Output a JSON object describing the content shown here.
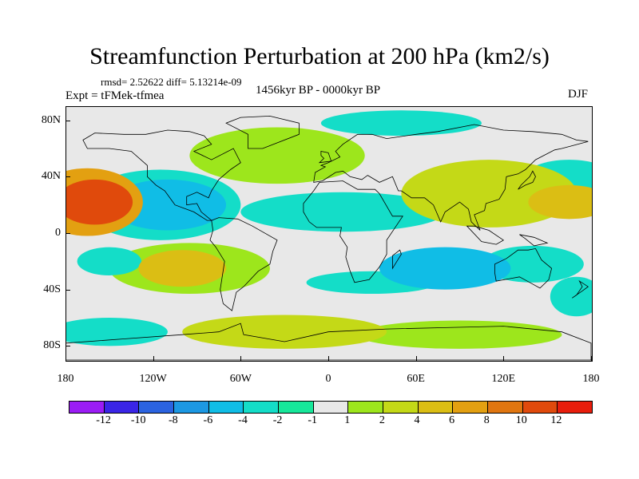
{
  "title": "Streamfunction Perturbation at 200 hPa (km2/s)",
  "stats": "rmsd= 2.52622 diff= 5.13214e-09",
  "experiment": "Expt = tFMek-tfmea",
  "period": "1456kyr BP - 0000kyr BP",
  "season": "DJF",
  "map": {
    "projection": "cylindrical-equidistant",
    "lon_range": [
      -180,
      180
    ],
    "lat_range": [
      -90,
      90
    ],
    "lat_labels": [
      "80N",
      "40N",
      "0",
      "40S",
      "80S"
    ],
    "lat_values": [
      80,
      40,
      0,
      -40,
      -80
    ],
    "lon_labels": [
      "180",
      "120W",
      "60W",
      "0",
      "60E",
      "120E",
      "180"
    ],
    "lon_values": [
      -180,
      -120,
      -60,
      0,
      60,
      120,
      180
    ],
    "background_color": "#e8e8e8",
    "coastline_color": "#000000"
  },
  "colorbar": {
    "colors": [
      "#9b1cf5",
      "#3a25e6",
      "#2b63e0",
      "#1c98e3",
      "#10bde6",
      "#14ddc8",
      "#17e79a",
      "#e8e8e8",
      "#9de61c",
      "#c4d917",
      "#dbbe14",
      "#e3a011",
      "#e07610",
      "#e04a0c",
      "#e81d0c"
    ],
    "labels": [
      "-12",
      "-10",
      "-8",
      "-6",
      "-4",
      "-2",
      "-1",
      "1",
      "2",
      "4",
      "6",
      "8",
      "10",
      "12"
    ]
  },
  "anomalies": [
    {
      "lon": -160,
      "lat": 22,
      "value": 11,
      "rx": 26,
      "ry": 16
    },
    {
      "lon": -165,
      "lat": 22,
      "value": 7,
      "rx": 38,
      "ry": 24
    },
    {
      "lon": -110,
      "lat": 20,
      "value": -4,
      "rx": 40,
      "ry": 18
    },
    {
      "lon": -115,
      "lat": 20,
      "value": -2,
      "rx": 55,
      "ry": 25
    },
    {
      "lon": -35,
      "lat": 55,
      "value": 2,
      "rx": 60,
      "ry": 20
    },
    {
      "lon": 10,
      "lat": 15,
      "value": -2,
      "rx": 70,
      "ry": 14
    },
    {
      "lon": 50,
      "lat": 78,
      "value": -2,
      "rx": 55,
      "ry": 9
    },
    {
      "lon": 110,
      "lat": 28,
      "value": 4,
      "rx": 60,
      "ry": 24
    },
    {
      "lon": 165,
      "lat": 22,
      "value": 6,
      "rx": 28,
      "ry": 12
    },
    {
      "lon": 165,
      "lat": 40,
      "value": -2,
      "rx": 30,
      "ry": 12
    },
    {
      "lon": -150,
      "lat": -20,
      "value": -3,
      "rx": 22,
      "ry": 10
    },
    {
      "lon": -100,
      "lat": -25,
      "value": 6,
      "rx": 30,
      "ry": 13
    },
    {
      "lon": -95,
      "lat": -25,
      "value": 2,
      "rx": 55,
      "ry": 18
    },
    {
      "lon": 80,
      "lat": -25,
      "value": -4,
      "rx": 45,
      "ry": 15
    },
    {
      "lon": 140,
      "lat": -22,
      "value": -2,
      "rx": 35,
      "ry": 13
    },
    {
      "lon": 30,
      "lat": -35,
      "value": -2,
      "rx": 45,
      "ry": 8
    },
    {
      "lon": -30,
      "lat": -70,
      "value": 4,
      "rx": 70,
      "ry": 12
    },
    {
      "lon": -150,
      "lat": -70,
      "value": -2,
      "rx": 40,
      "ry": 10
    },
    {
      "lon": 90,
      "lat": -72,
      "value": 2,
      "rx": 70,
      "ry": 10
    },
    {
      "lon": 170,
      "lat": -45,
      "value": -2,
      "rx": 18,
      "ry": 14
    }
  ]
}
